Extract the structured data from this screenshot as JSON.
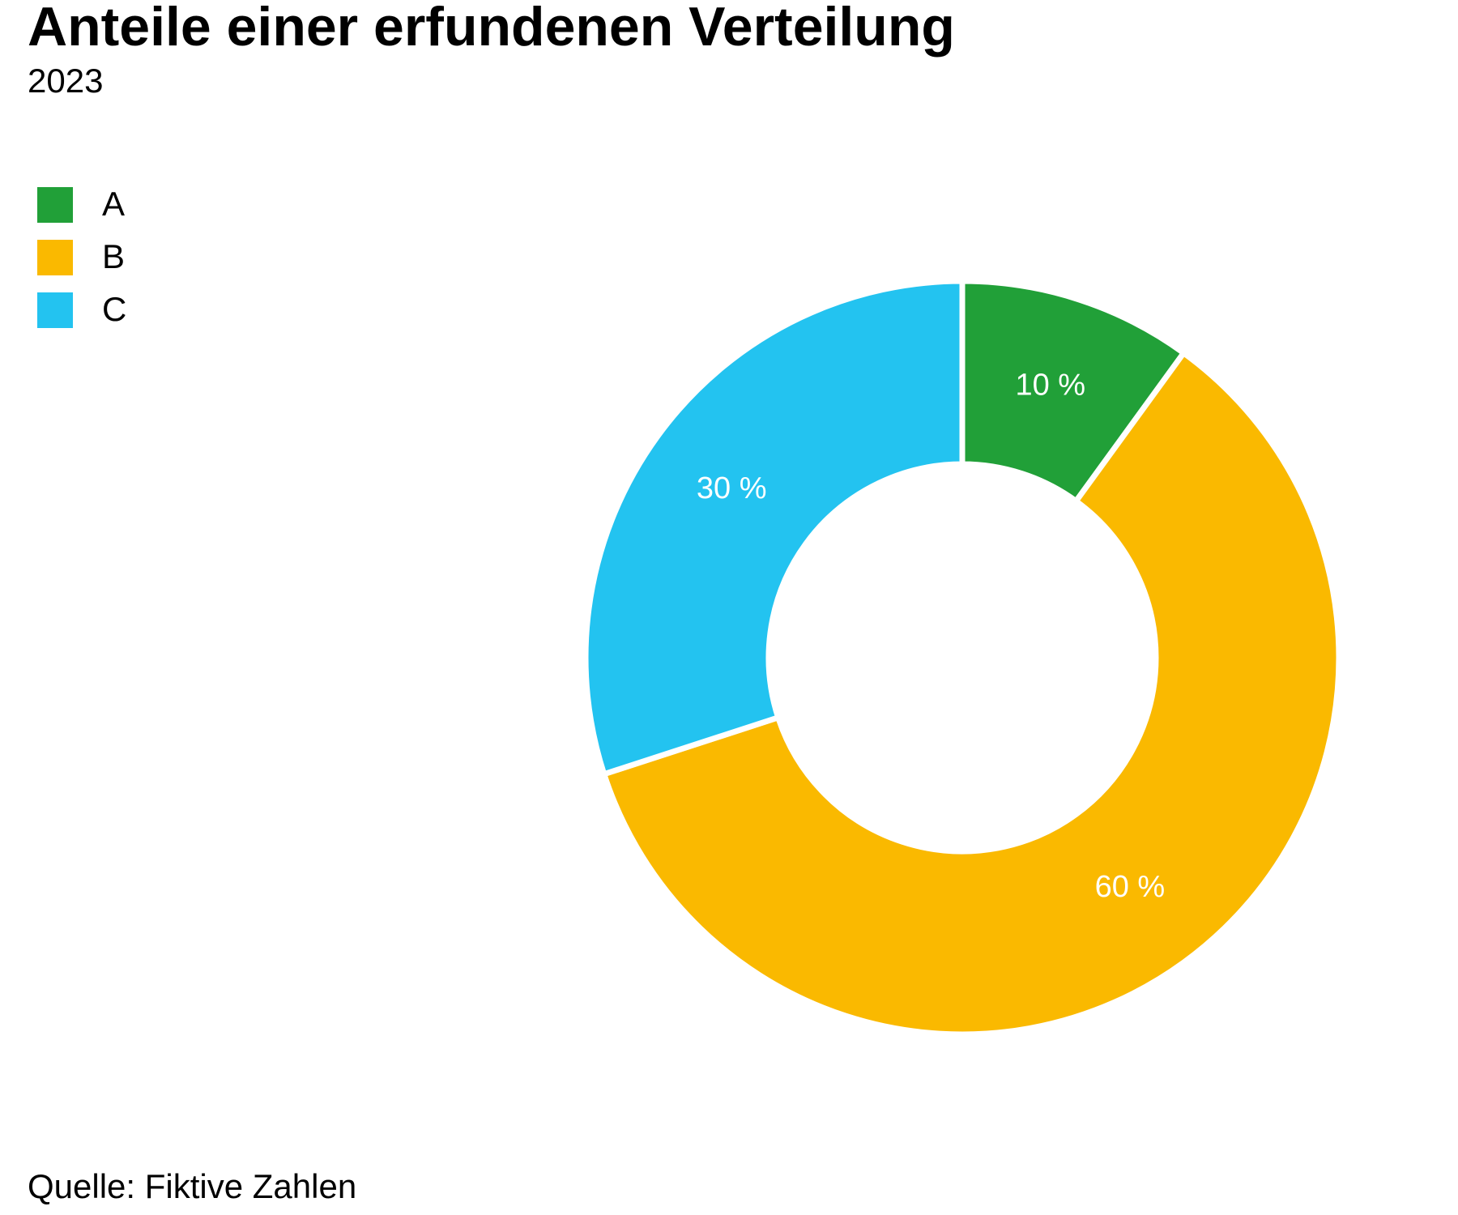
{
  "chart_data": {
    "type": "donut",
    "title": "Anteile einer erfundenen Verteilung",
    "subtitle": "2023",
    "source": "Quelle: Fiktive Zahlen",
    "categories": [
      "A",
      "B",
      "C"
    ],
    "values": [
      10,
      60,
      30
    ],
    "value_labels": [
      "10 %",
      "60 %",
      "30 %"
    ],
    "colors": [
      "#21a038",
      "#fab900",
      "#23c3f0"
    ],
    "legend": "top-left"
  }
}
